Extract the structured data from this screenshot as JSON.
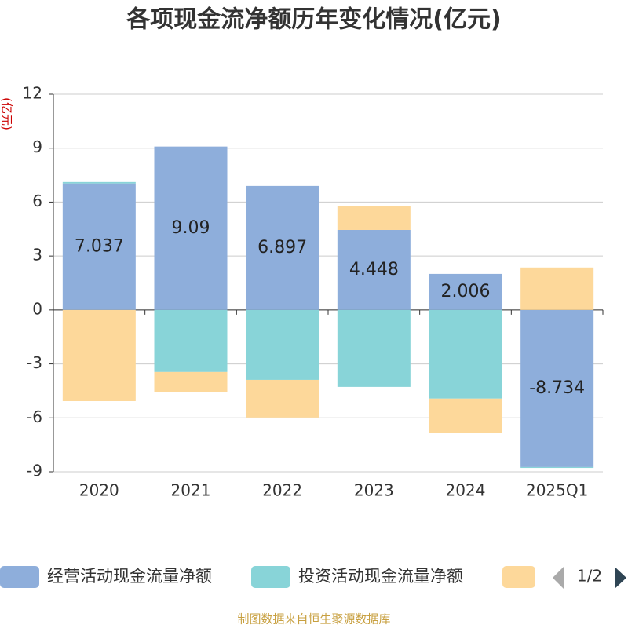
{
  "chart_data": {
    "type": "bar",
    "stacked": true,
    "title": "各项现金流净额历年变化情况(亿元)",
    "y_label": "(亿元)",
    "categories": [
      "2020",
      "2021",
      "2022",
      "2023",
      "2024",
      "2025Q1"
    ],
    "series": [
      {
        "name": "经营活动现金流量净额",
        "color": "#8eaedb",
        "show_labels": true,
        "values": [
          7.037,
          9.09,
          6.897,
          4.448,
          2.006,
          -8.734
        ]
      },
      {
        "name": "投资活动现金流量净额",
        "color": "#88d4d8",
        "values": [
          0.08,
          -3.45,
          -3.89,
          -4.28,
          -4.93,
          -0.05
        ]
      },
      {
        "color": "#fdd89a",
        "values": [
          -5.07,
          -1.13,
          -2.09,
          1.31,
          -1.93,
          2.36
        ]
      }
    ],
    "ylim": [
      -9,
      12
    ],
    "yticks": [
      -9,
      -6,
      -3,
      0,
      3,
      6,
      9,
      12
    ],
    "grid": true,
    "legend_page": "1/2",
    "source": "制图数据来自恒生聚源数据库"
  }
}
